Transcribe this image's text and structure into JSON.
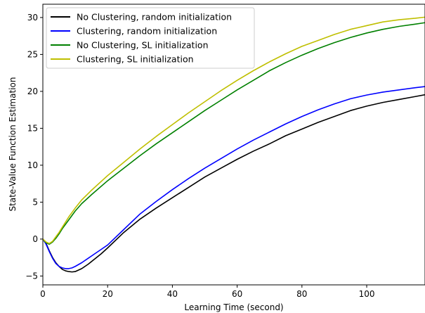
{
  "chart_data": {
    "type": "line",
    "title": "",
    "xlabel": "Learning Time (second)",
    "ylabel": "State-Value Function Estimation",
    "xlim": [
      0,
      118
    ],
    "ylim": [
      -6.2,
      31.8
    ],
    "xticks": [
      0,
      20,
      40,
      60,
      80,
      100
    ],
    "yticks": [
      -5,
      0,
      5,
      10,
      15,
      20,
      25,
      30
    ],
    "grid": false,
    "legend_position": "top-left",
    "series": [
      {
        "name": "No Clustering, random initialization",
        "color": "#000000",
        "x": [
          0,
          1,
          2,
          3,
          4,
          5,
          6,
          7,
          8,
          9,
          10,
          12,
          14,
          16,
          18,
          20,
          25,
          30,
          35,
          40,
          45,
          50,
          55,
          60,
          65,
          70,
          75,
          80,
          85,
          90,
          95,
          100,
          105,
          110,
          115,
          118
        ],
        "y": [
          0,
          -0.6,
          -1.6,
          -2.5,
          -3.2,
          -3.7,
          -4.1,
          -4.3,
          -4.4,
          -4.45,
          -4.4,
          -4.0,
          -3.4,
          -2.7,
          -2.0,
          -1.2,
          0.9,
          2.7,
          4.2,
          5.6,
          7.0,
          8.4,
          9.6,
          10.8,
          11.9,
          12.9,
          14.0,
          14.9,
          15.8,
          16.6,
          17.4,
          18.0,
          18.5,
          18.9,
          19.3,
          19.55
        ]
      },
      {
        "name": "Clustering, random initialization",
        "color": "#0000ff",
        "x": [
          0,
          1,
          2,
          3,
          4,
          5,
          6,
          7,
          8,
          9,
          10,
          12,
          14,
          16,
          18,
          20,
          25,
          30,
          35,
          40,
          45,
          50,
          55,
          60,
          65,
          70,
          75,
          80,
          85,
          90,
          95,
          100,
          105,
          110,
          115,
          118
        ],
        "y": [
          0,
          -0.7,
          -1.7,
          -2.6,
          -3.3,
          -3.7,
          -3.9,
          -4.0,
          -4.0,
          -3.9,
          -3.7,
          -3.2,
          -2.6,
          -2.0,
          -1.4,
          -0.8,
          1.3,
          3.4,
          5.1,
          6.7,
          8.2,
          9.6,
          10.9,
          12.2,
          13.4,
          14.5,
          15.6,
          16.6,
          17.5,
          18.3,
          19.0,
          19.5,
          19.9,
          20.2,
          20.5,
          20.65
        ]
      },
      {
        "name": "No Clustering, SL initialization",
        "color": "#008000",
        "x": [
          0,
          1,
          2,
          3,
          4,
          5,
          6,
          8,
          10,
          12,
          15,
          20,
          25,
          30,
          35,
          40,
          45,
          50,
          55,
          60,
          65,
          70,
          75,
          80,
          85,
          90,
          95,
          100,
          105,
          110,
          115,
          118
        ],
        "y": [
          0,
          -0.5,
          -0.7,
          -0.4,
          0.1,
          0.7,
          1.4,
          2.6,
          3.8,
          4.8,
          6.0,
          7.9,
          9.6,
          11.3,
          12.9,
          14.4,
          15.9,
          17.4,
          18.8,
          20.2,
          21.5,
          22.8,
          23.9,
          24.9,
          25.8,
          26.6,
          27.3,
          27.9,
          28.4,
          28.8,
          29.1,
          29.3
        ]
      },
      {
        "name": "Clustering, SL initialization",
        "color": "#bfbf00",
        "x": [
          0,
          1,
          2,
          3,
          4,
          5,
          6,
          8,
          10,
          12,
          15,
          20,
          25,
          30,
          35,
          40,
          45,
          50,
          55,
          60,
          65,
          70,
          75,
          80,
          85,
          90,
          95,
          100,
          105,
          110,
          115,
          118
        ],
        "y": [
          0,
          -0.4,
          -0.6,
          -0.3,
          0.3,
          0.9,
          1.6,
          3.0,
          4.2,
          5.3,
          6.6,
          8.6,
          10.4,
          12.2,
          13.9,
          15.5,
          17.1,
          18.6,
          20.1,
          21.5,
          22.8,
          24.0,
          25.1,
          26.1,
          26.9,
          27.7,
          28.4,
          28.9,
          29.4,
          29.7,
          29.9,
          30.05
        ]
      }
    ]
  }
}
